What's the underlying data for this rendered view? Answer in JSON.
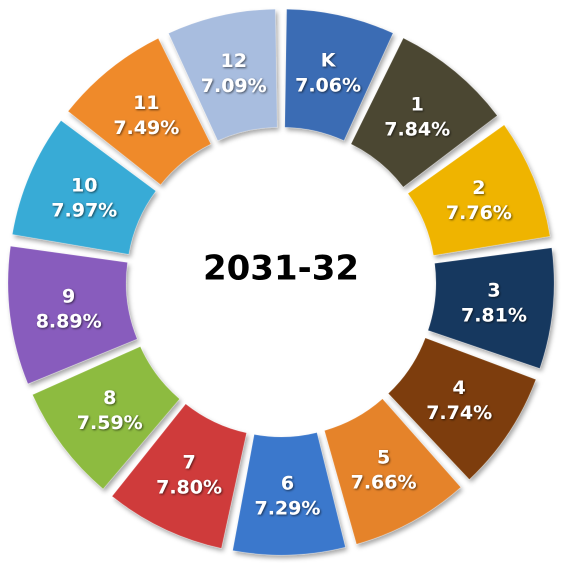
{
  "chart_data": {
    "type": "donut",
    "title": "2031-32",
    "categories": [
      "K",
      "1",
      "2",
      "3",
      "4",
      "5",
      "6",
      "7",
      "8",
      "9",
      "10",
      "11",
      "12"
    ],
    "values": [
      7.06,
      7.84,
      7.76,
      7.81,
      7.74,
      7.66,
      7.29,
      7.8,
      7.59,
      8.89,
      7.97,
      7.49,
      7.09
    ],
    "value_labels": [
      "7.06%",
      "7.84%",
      "7.76%",
      "7.81%",
      "7.74%",
      "7.66%",
      "7.29%",
      "7.80%",
      "7.59%",
      "8.89%",
      "7.97%",
      "7.49%",
      "7.09%"
    ],
    "colors": [
      "#3b6cb4",
      "#4b4631",
      "#efb400",
      "#18385f",
      "#7d3e0b",
      "#e5832b",
      "#3b78cc",
      "#cf3b3b",
      "#8dbb3f",
      "#885bbd",
      "#37abd6",
      "#ef8a2b",
      "#a8bddf"
    ]
  }
}
